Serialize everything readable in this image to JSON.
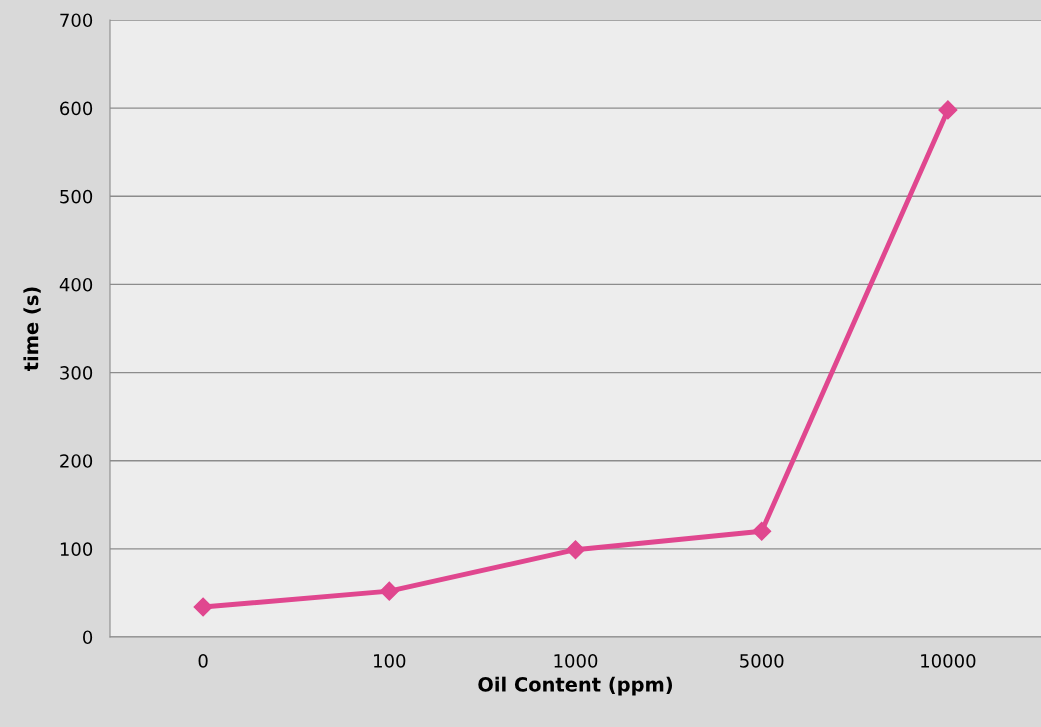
{
  "chart_data": {
    "type": "line",
    "xlabel": "Oil Content (ppm)",
    "ylabel": "time (s)",
    "categories": [
      "0",
      "100",
      "1000",
      "5000",
      "10000"
    ],
    "series": [
      {
        "color": "#e0478f",
        "values": [
          34,
          52,
          99,
          120,
          598
        ]
      }
    ],
    "ylim": [
      0,
      700
    ],
    "yticks": [
      0,
      100,
      200,
      300,
      400,
      500,
      600,
      700
    ],
    "grid": "y",
    "marker": "diamond",
    "line_style": "solid",
    "legend": false
  }
}
